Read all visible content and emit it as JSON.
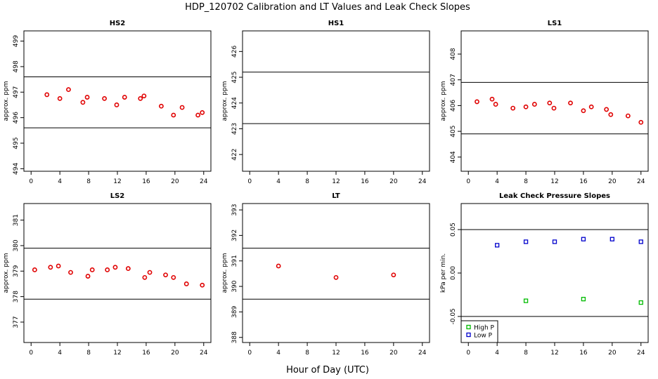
{
  "figure": {
    "title": "HDP_120702  Calibration and LT Values and Leak Check Slopes",
    "xlabel": "Hour of Day (UTC)"
  },
  "chart_data": [
    {
      "id": "hs2",
      "type": "scatter",
      "title": "HS2",
      "ylabel": "approx. ppm",
      "xlim": [
        -1,
        25
      ],
      "ylim": [
        493.9,
        499.4
      ],
      "xticks": [
        "0",
        "4",
        "8",
        "12",
        "16",
        "20",
        "24"
      ],
      "yticks": [
        "494",
        "495",
        "496",
        "497",
        "498",
        "499"
      ],
      "hlines": [
        497.6,
        495.6
      ],
      "series": [
        {
          "color": "#e00000",
          "marker": "circle",
          "x": [
            2.2,
            4.0,
            5.2,
            7.2,
            7.8,
            10.2,
            11.9,
            13.0,
            15.2,
            15.7,
            18.1,
            19.8,
            21.0,
            23.2,
            23.8
          ],
          "y": [
            496.9,
            496.75,
            497.1,
            496.6,
            496.8,
            496.75,
            496.5,
            496.8,
            496.75,
            496.85,
            496.45,
            496.1,
            496.4,
            496.1,
            496.2
          ]
        }
      ]
    },
    {
      "id": "hs1",
      "type": "scatter",
      "title": "HS1",
      "ylabel": "approx. ppm",
      "xlim": [
        -1,
        25
      ],
      "ylim": [
        421.35,
        426.8
      ],
      "xticks": [
        "0",
        "4",
        "8",
        "12",
        "16",
        "20",
        "24"
      ],
      "yticks": [
        "422",
        "423",
        "424",
        "425",
        "426"
      ],
      "hlines": [
        425.2,
        423.2
      ],
      "series": []
    },
    {
      "id": "ls1",
      "type": "scatter",
      "title": "LS1",
      "ylabel": "approx. ppm",
      "xlim": [
        -1,
        25
      ],
      "ylim": [
        403.45,
        408.9
      ],
      "xticks": [
        "0",
        "4",
        "8",
        "12",
        "16",
        "20",
        "24"
      ],
      "yticks": [
        "404",
        "405",
        "406",
        "407",
        "408"
      ],
      "hlines": [
        406.9,
        404.9
      ],
      "series": [
        {
          "color": "#e00000",
          "marker": "circle",
          "x": [
            1.2,
            3.3,
            3.8,
            6.2,
            8.0,
            9.2,
            11.3,
            11.9,
            14.2,
            16.0,
            17.1,
            19.2,
            19.8,
            22.2,
            24.0
          ],
          "y": [
            406.15,
            406.25,
            406.05,
            405.9,
            405.95,
            406.05,
            406.1,
            405.9,
            406.1,
            405.8,
            405.95,
            405.85,
            405.65,
            405.6,
            405.35
          ]
        }
      ]
    },
    {
      "id": "ls2",
      "type": "scatter",
      "title": "LS2",
      "ylabel": "approx. ppm",
      "xlim": [
        -1,
        25
      ],
      "ylim": [
        376.2,
        381.65
      ],
      "xticks": [
        "0",
        "4",
        "8",
        "12",
        "16",
        "20",
        "24"
      ],
      "yticks": [
        "377",
        "378",
        "379",
        "380",
        "381"
      ],
      "hlines": [
        379.9,
        377.9
      ],
      "series": [
        {
          "color": "#e00000",
          "marker": "circle",
          "x": [
            0.5,
            2.7,
            3.8,
            5.5,
            7.9,
            8.5,
            10.6,
            11.7,
            13.5,
            15.8,
            16.5,
            18.7,
            19.8,
            21.6,
            23.8
          ],
          "y": [
            379.05,
            379.15,
            379.2,
            378.95,
            378.8,
            379.05,
            379.05,
            379.15,
            379.1,
            378.75,
            378.95,
            378.85,
            378.75,
            378.5,
            378.45
          ]
        }
      ]
    },
    {
      "id": "lt",
      "type": "scatter",
      "title": "LT",
      "ylabel": "approx. ppm",
      "xlim": [
        -1,
        25
      ],
      "ylim": [
        387.8,
        393.25
      ],
      "xticks": [
        "0",
        "4",
        "8",
        "12",
        "16",
        "20",
        "24"
      ],
      "yticks": [
        "388",
        "389",
        "390",
        "391",
        "392",
        "393"
      ],
      "hlines": [
        391.5,
        389.5
      ],
      "series": [
        {
          "color": "#e00000",
          "marker": "circle",
          "x": [
            4.0,
            12.0,
            20.0
          ],
          "y": [
            390.8,
            390.35,
            390.45
          ]
        }
      ]
    },
    {
      "id": "leak",
      "type": "scatter",
      "title": "Leak Check Pressure Slopes",
      "ylabel": "kPa per min.",
      "xlim": [
        -1,
        25
      ],
      "ylim": [
        -0.08,
        0.08
      ],
      "xticks": [
        "0",
        "4",
        "8",
        "12",
        "16",
        "20",
        "24"
      ],
      "yticks": [
        "-0.05",
        "0.00",
        "0.05"
      ],
      "hlines": [
        0.05,
        -0.05
      ],
      "legend": {
        "position": "bottom-left"
      },
      "series": [
        {
          "name": "High P",
          "color": "#00bb00",
          "marker": "square",
          "x": [
            8,
            16,
            24
          ],
          "y": [
            -0.032,
            -0.03,
            -0.034
          ]
        },
        {
          "name": "Low P",
          "color": "#0000cc",
          "marker": "square",
          "x": [
            4,
            8,
            12,
            16,
            20,
            24
          ],
          "y": [
            0.032,
            0.036,
            0.036,
            0.039,
            0.039,
            0.036
          ]
        }
      ]
    }
  ]
}
